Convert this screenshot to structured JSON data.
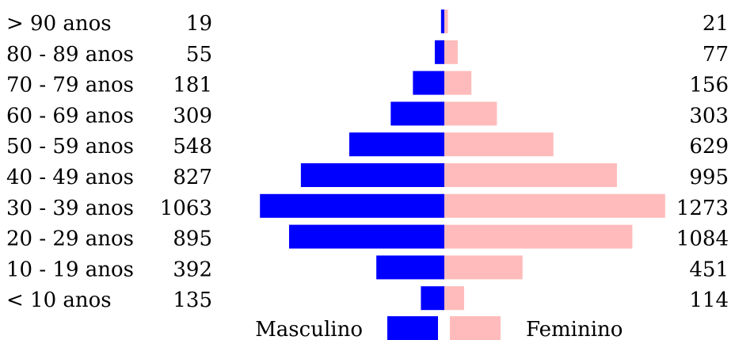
{
  "chart_data": {
    "type": "bar",
    "orientation": "horizontal-diverging",
    "categories": [
      "> 90 anos",
      "80 - 89 anos",
      "70 - 79 anos",
      "60 - 69 anos",
      "50 - 59 anos",
      "40 - 49 anos",
      "30 - 39 anos",
      "20 - 29 anos",
      "10 - 19 anos",
      "< 10 anos"
    ],
    "series": [
      {
        "name": "Masculino",
        "color": "#0000ff",
        "values": [
          19,
          55,
          181,
          309,
          548,
          827,
          1063,
          895,
          392,
          135
        ]
      },
      {
        "name": "Feminino",
        "color": "#ffbbbb",
        "values": [
          21,
          77,
          156,
          303,
          629,
          995,
          1273,
          1084,
          451,
          114
        ]
      }
    ],
    "legend": {
      "placement": "bottom-center",
      "entries": [
        "Masculino",
        "Feminino"
      ]
    },
    "grid": false,
    "title": ""
  }
}
